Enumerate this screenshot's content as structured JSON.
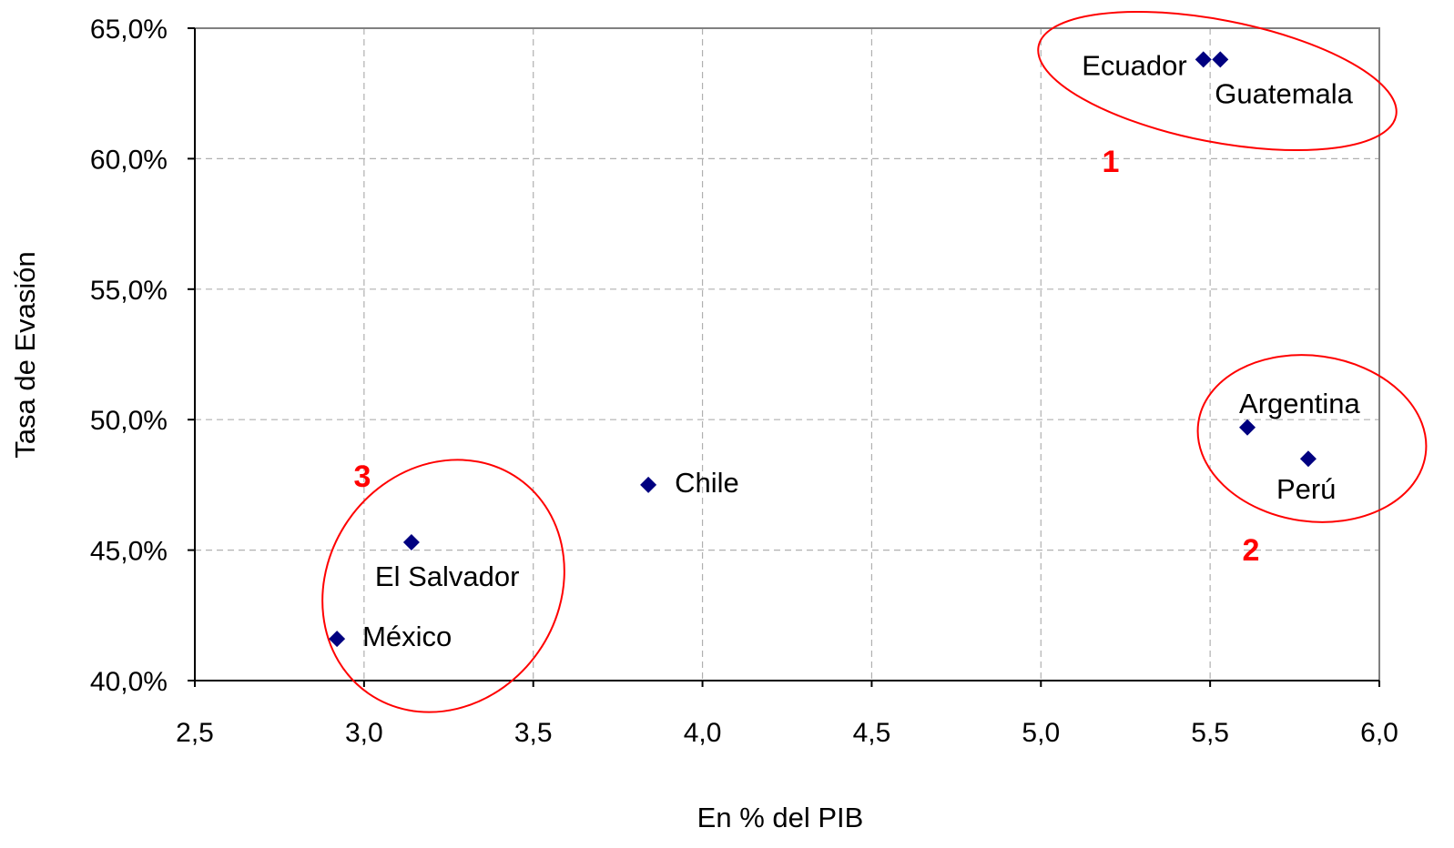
{
  "chart_data": {
    "type": "scatter",
    "xlabel": "En % del PIB",
    "ylabel": "Tasa de Evasión",
    "xlim": [
      2.5,
      6.0
    ],
    "ylim": [
      0.4,
      0.65
    ],
    "x_ticks": [
      "2,5",
      "3,0",
      "3,5",
      "4,0",
      "4,5",
      "5,0",
      "5,5",
      "6,0"
    ],
    "y_ticks": [
      "40,0%",
      "45,0%",
      "50,0%",
      "55,0%",
      "60,0%",
      "65,0%"
    ],
    "grid": true,
    "marker_color": "#000080",
    "annotation_color": "#ff0000",
    "points": [
      {
        "label": "Ecuador",
        "x": 5.48,
        "y": 0.638
      },
      {
        "label": "Guatemala",
        "x": 5.53,
        "y": 0.638
      },
      {
        "label": "Argentina",
        "x": 5.61,
        "y": 0.497
      },
      {
        "label": "Perú",
        "x": 5.79,
        "y": 0.485
      },
      {
        "label": "Chile",
        "x": 3.84,
        "y": 0.475
      },
      {
        "label": "El Salvador",
        "x": 3.14,
        "y": 0.453
      },
      {
        "label": "México",
        "x": 2.92,
        "y": 0.416
      }
    ],
    "groups": [
      {
        "label": "1"
      },
      {
        "label": "2"
      },
      {
        "label": "3"
      }
    ]
  }
}
